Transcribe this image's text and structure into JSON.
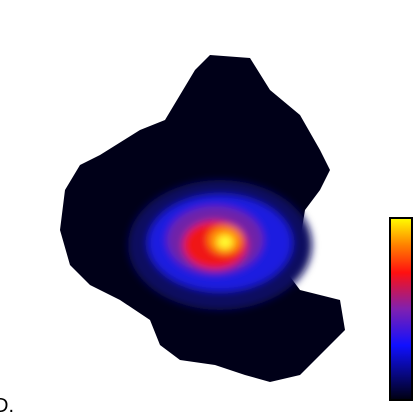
{
  "panel_label": "D."
}
